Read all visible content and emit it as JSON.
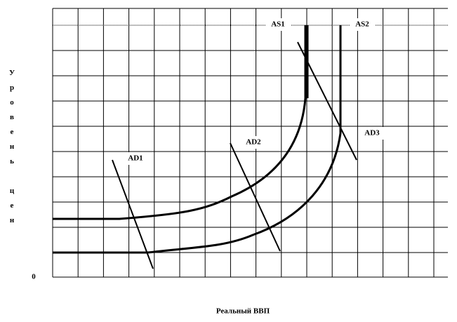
{
  "diagram": {
    "y_axis_label": "Уровень цен",
    "x_axis_label": "Реальный ВВП",
    "origin_label": "0",
    "curves": [
      {
        "label": "AS1"
      },
      {
        "label": "AS2"
      },
      {
        "label": "AD1"
      },
      {
        "label": "AD2"
      },
      {
        "label": "AD3"
      }
    ]
  }
}
